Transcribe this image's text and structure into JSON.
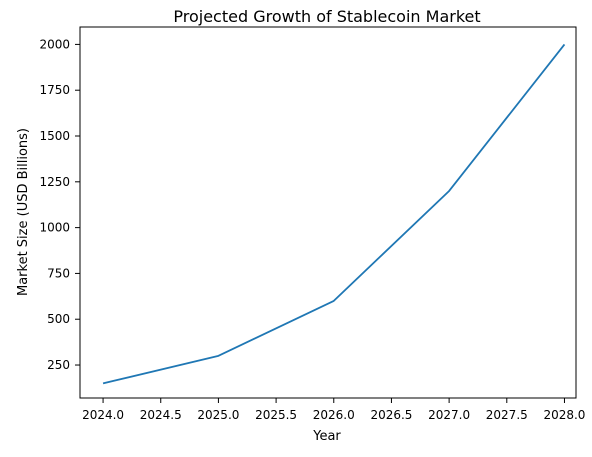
{
  "chart_data": {
    "type": "line",
    "title": "Projected Growth of Stablecoin Market",
    "xlabel": "Year",
    "ylabel": "Market Size (USD Billions)",
    "xlim": [
      2023.8,
      2028.1
    ],
    "ylim": [
      70,
      2095
    ],
    "x_ticks": [
      2024.0,
      2024.5,
      2025.0,
      2025.5,
      2026.0,
      2026.5,
      2027.0,
      2027.5,
      2028.0
    ],
    "x_tick_labels": [
      "2024.0",
      "2024.5",
      "2025.0",
      "2025.5",
      "2026.0",
      "2026.5",
      "2027.0",
      "2027.5",
      "2028.0"
    ],
    "y_ticks": [
      250,
      500,
      750,
      1000,
      1250,
      1500,
      1750,
      2000
    ],
    "y_tick_labels": [
      "250",
      "500",
      "750",
      "1000",
      "1250",
      "1500",
      "1750",
      "2000"
    ],
    "grid": false,
    "series": [
      {
        "color": "#1f77b4",
        "x": [
          2024,
          2025,
          2026,
          2027,
          2028
        ],
        "values": [
          150,
          300,
          600,
          1200,
          2000
        ]
      }
    ]
  }
}
